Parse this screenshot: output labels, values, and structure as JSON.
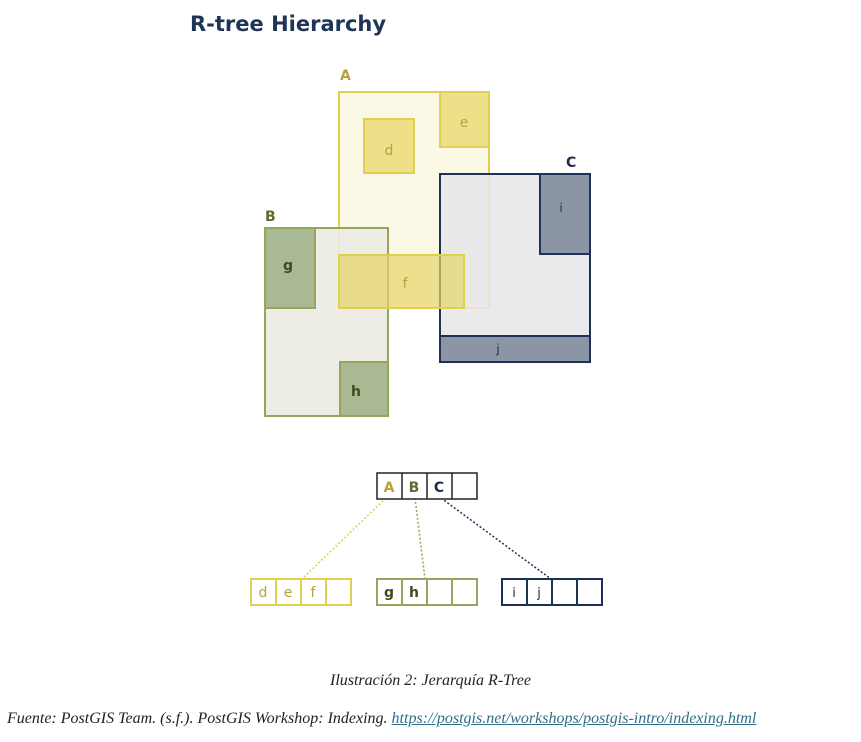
{
  "diagram": {
    "title": "R-tree Hierarchy",
    "colors": {
      "yellow": "#e0cf52",
      "yellow_fill": "#fbf9e6",
      "yellow_leaf": "#ede089",
      "yellow_text": "#b9a23a",
      "green": "#93a65b",
      "green_fill": "#ebebe2",
      "green_leaf": "#a9b993",
      "green_text": "#5d6b2c",
      "navy": "#1d3254",
      "navy_fill": "#e6e6ea",
      "navy_leaf": "#8b95a6",
      "navy_text": "#1d2d4a"
    },
    "regions": {
      "A": {
        "label": "A"
      },
      "B": {
        "label": "B"
      },
      "C": {
        "label": "C"
      },
      "d": {
        "label": "d"
      },
      "e": {
        "label": "e"
      },
      "f": {
        "label": "f"
      },
      "g": {
        "label": "g"
      },
      "h": {
        "label": "h"
      },
      "i": {
        "label": "i"
      },
      "j": {
        "label": "j"
      }
    },
    "tree": {
      "root": [
        "A",
        "B",
        "C",
        ""
      ],
      "leaf_A": [
        "d",
        "e",
        "f",
        ""
      ],
      "leaf_B": [
        "g",
        "h",
        "",
        ""
      ],
      "leaf_C": [
        "i",
        "j",
        "",
        ""
      ]
    }
  },
  "caption": "Ilustración 2: Jerarquía R-Tree",
  "source": {
    "text": "Fuente: PostGIS Team. (s.f.). PostGIS Workshop: Indexing. ",
    "link": "https://postgis.net/workshops/postgis-intro/indexing.html"
  }
}
